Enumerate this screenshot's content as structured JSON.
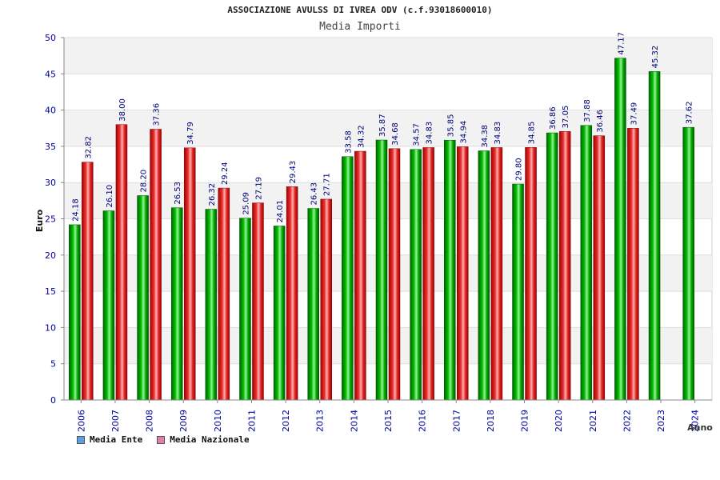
{
  "chart_data": {
    "type": "bar",
    "title": "ASSOCIAZIONE AVULSS DI IVREA ODV (c.f.93018600010)",
    "subtitle": "Media Importi",
    "xlabel": "Anno",
    "ylabel": "Euro",
    "ylim": [
      0,
      50
    ],
    "yticks": [
      0,
      5,
      10,
      15,
      20,
      25,
      30,
      35,
      40,
      45,
      50
    ],
    "grid": true,
    "legend_placement": "bottom-left",
    "categories": [
      "2006",
      "2007",
      "2008",
      "2009",
      "2010",
      "2011",
      "2012",
      "2013",
      "2014",
      "2015",
      "2016",
      "2017",
      "2018",
      "2019",
      "2020",
      "2021",
      "2022",
      "2023",
      "2024"
    ],
    "series": [
      {
        "name": "Media Ente",
        "color": "#00a000",
        "values": [
          24.18,
          26.1,
          28.2,
          26.53,
          26.32,
          25.09,
          24.01,
          26.43,
          33.58,
          35.87,
          34.57,
          35.85,
          34.38,
          29.8,
          36.86,
          37.88,
          47.17,
          45.32,
          37.62
        ],
        "labels": [
          "24.18",
          "26.10",
          "28.20",
          "26.53",
          "26.32",
          "25.09",
          "24.01",
          "26.43",
          "33.58",
          "35.87",
          "34.57",
          "35.85",
          "34.38",
          "29.80",
          "36.86",
          "37.88",
          "47.17",
          "45.32",
          "37.62"
        ]
      },
      {
        "name": "Media Nazionale",
        "color": "#e02020",
        "values": [
          32.82,
          38.0,
          37.36,
          34.79,
          29.24,
          27.19,
          29.43,
          27.71,
          34.32,
          34.68,
          34.83,
          34.94,
          34.83,
          34.85,
          37.05,
          36.46,
          37.49,
          null,
          null
        ],
        "labels": [
          "32.82",
          "38.00",
          "37.36",
          "34.79",
          "29.24",
          "27.19",
          "29.43",
          "27.71",
          "34.32",
          "34.68",
          "34.83",
          "34.94",
          "34.83",
          "34.85",
          "37.05",
          "36.46",
          "37.49",
          null,
          null
        ]
      }
    ]
  },
  "legend": {
    "items": [
      {
        "label": "Media Ente",
        "color": "#5aa0e0"
      },
      {
        "label": "Media Nazionale",
        "color": "#e080a8"
      }
    ]
  }
}
